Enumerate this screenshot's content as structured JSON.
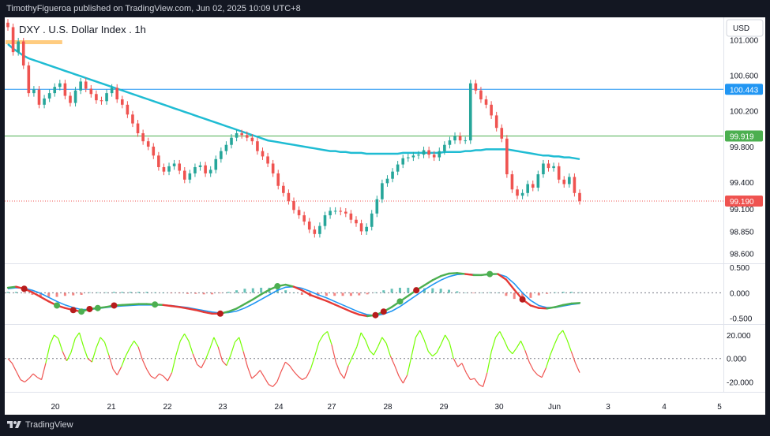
{
  "header": {
    "attribution": "TimothyFigueroa published on TradingView.com, Jun 02, 2025 10:09 UTC+8"
  },
  "footer": {
    "brand": "TradingView"
  },
  "chart_data": {
    "type": "candlestick",
    "title": "DXY . U.S. Dollar Index . 1h",
    "currency": "USD",
    "colors": {
      "up": "#26a69a",
      "down": "#ef5350",
      "ma": "#1fbcd3",
      "line_blue": "#2196f3",
      "line_green": "#4caf50",
      "line_red": "#e53935",
      "highlight": "#ffcc80"
    },
    "x_ticks": [
      "20",
      "21",
      "22",
      "23",
      "24",
      "27",
      "28",
      "29",
      "30",
      "Jun",
      "3",
      "4",
      "5"
    ],
    "y_ticks": [
      "101.000",
      "100.600",
      "100.200",
      "99.800",
      "99.400",
      "99.100",
      "98.850",
      "98.600"
    ],
    "ylim": [
      98.5,
      101.25
    ],
    "price_close": [
      101.14,
      100.86,
      100.98,
      100.71,
      100.4,
      100.44,
      100.27,
      100.34,
      100.4,
      100.47,
      100.51,
      100.37,
      100.29,
      100.43,
      100.53,
      100.45,
      100.39,
      100.32,
      100.31,
      100.4,
      100.46,
      100.33,
      100.27,
      100.16,
      100.06,
      99.95,
      99.86,
      99.8,
      99.7,
      99.57,
      99.52,
      99.58,
      99.61,
      99.53,
      99.43,
      99.5,
      99.57,
      99.59,
      99.5,
      99.54,
      99.66,
      99.75,
      99.82,
      99.9,
      99.95,
      99.93,
      99.9,
      99.86,
      99.75,
      99.69,
      99.61,
      99.5,
      99.36,
      99.28,
      99.19,
      99.09,
      99.03,
      98.96,
      98.87,
      98.82,
      98.91,
      99.03,
      99.08,
      99.08,
      99.07,
      99.05,
      98.98,
      98.94,
      98.85,
      98.9,
      99.05,
      99.21,
      99.39,
      99.44,
      99.52,
      99.6,
      99.67,
      99.68,
      99.7,
      99.71,
      99.76,
      99.71,
      99.68,
      99.75,
      99.82,
      99.87,
      99.92,
      99.87,
      99.87,
      100.51,
      100.43,
      100.33,
      100.27,
      100.15,
      100.01,
      99.89,
      99.49,
      99.32,
      99.25,
      99.28,
      99.38,
      99.34,
      99.49,
      99.61,
      99.56,
      99.58,
      99.43,
      99.38,
      99.46,
      99.28,
      99.19
    ],
    "price_labels": [
      {
        "value": 100.443,
        "label": "100.443",
        "color": "#2196f3"
      },
      {
        "value": 99.919,
        "label": "99.919",
        "color": "#4caf50"
      },
      {
        "value": 99.19,
        "label": "99.190",
        "color": "#ef5350"
      }
    ],
    "ma_line": [
      100.95,
      100.9,
      100.86,
      100.82,
      100.79,
      100.77,
      100.75,
      100.73,
      100.71,
      100.69,
      100.67,
      100.65,
      100.63,
      100.61,
      100.59,
      100.57,
      100.55,
      100.53,
      100.51,
      100.49,
      100.47,
      100.45,
      100.43,
      100.41,
      100.39,
      100.37,
      100.35,
      100.33,
      100.31,
      100.29,
      100.27,
      100.25,
      100.23,
      100.21,
      100.19,
      100.17,
      100.15,
      100.13,
      100.11,
      100.09,
      100.07,
      100.05,
      100.03,
      100.01,
      99.99,
      99.97,
      99.95,
      99.93,
      99.91,
      99.89,
      99.87,
      99.86,
      99.85,
      99.84,
      99.83,
      99.82,
      99.81,
      99.8,
      99.79,
      99.78,
      99.77,
      99.76,
      99.75,
      99.75,
      99.74,
      99.74,
      99.73,
      99.73,
      99.73,
      99.72,
      99.72,
      99.72,
      99.72,
      99.72,
      99.72,
      99.72,
      99.73,
      99.73,
      99.73,
      99.73,
      99.73,
      99.73,
      99.73,
      99.73,
      99.74,
      99.74,
      99.74,
      99.74,
      99.75,
      99.75,
      99.76,
      99.76,
      99.77,
      99.77,
      99.77,
      99.77,
      99.77,
      99.76,
      99.75,
      99.74,
      99.73,
      99.72,
      99.71,
      99.7,
      99.7,
      99.69,
      99.69,
      99.68,
      99.68,
      99.67,
      99.66
    ],
    "oscillator": {
      "y_ticks": [
        "0.500",
        "0.000",
        "-0.500"
      ],
      "ylim": [
        -0.6,
        0.55
      ],
      "line_fast": [
        0.1,
        0.12,
        0.08,
        0.01,
        -0.08,
        -0.17,
        -0.25,
        -0.3,
        -0.34,
        -0.37,
        -0.32,
        -0.3,
        -0.28,
        -0.25,
        -0.24,
        -0.23,
        -0.22,
        -0.22,
        -0.23,
        -0.24,
        -0.26,
        -0.28,
        -0.31,
        -0.34,
        -0.38,
        -0.41,
        -0.41,
        -0.37,
        -0.31,
        -0.22,
        -0.13,
        -0.03,
        0.06,
        0.13,
        0.16,
        0.12,
        0.05,
        -0.04,
        -0.1,
        -0.16,
        -0.23,
        -0.3,
        -0.37,
        -0.43,
        -0.46,
        -0.44,
        -0.37,
        -0.28,
        -0.17,
        -0.06,
        0.05,
        0.15,
        0.25,
        0.33,
        0.38,
        0.39,
        0.37,
        0.35,
        0.35,
        0.37,
        0.37,
        0.26,
        0.06,
        -0.13,
        -0.25,
        -0.3,
        -0.31,
        -0.28,
        -0.24,
        -0.21,
        -0.2
      ],
      "line_signal": [
        0.08,
        0.1,
        0.09,
        0.05,
        -0.01,
        -0.09,
        -0.17,
        -0.24,
        -0.29,
        -0.33,
        -0.33,
        -0.31,
        -0.29,
        -0.27,
        -0.26,
        -0.25,
        -0.24,
        -0.24,
        -0.24,
        -0.24,
        -0.25,
        -0.27,
        -0.29,
        -0.32,
        -0.35,
        -0.38,
        -0.4,
        -0.39,
        -0.36,
        -0.3,
        -0.22,
        -0.13,
        -0.04,
        0.05,
        0.11,
        0.12,
        0.09,
        0.03,
        -0.04,
        -0.1,
        -0.17,
        -0.24,
        -0.31,
        -0.38,
        -0.43,
        -0.45,
        -0.42,
        -0.36,
        -0.27,
        -0.16,
        -0.05,
        0.06,
        0.16,
        0.25,
        0.32,
        0.36,
        0.37,
        0.36,
        0.35,
        0.36,
        0.37,
        0.32,
        0.18,
        0.0,
        -0.15,
        -0.25,
        -0.29,
        -0.29,
        -0.26,
        -0.23,
        -0.21
      ],
      "histogram": [
        0.02,
        0.02,
        -0.01,
        -0.04,
        -0.07,
        -0.08,
        -0.08,
        -0.06,
        -0.05,
        -0.04,
        0.01,
        0.01,
        0.01,
        0.02,
        0.02,
        0.02,
        0.02,
        0.02,
        0.01,
        0.0,
        -0.01,
        -0.01,
        -0.02,
        -0.02,
        -0.03,
        -0.03,
        -0.01,
        0.02,
        0.05,
        0.08,
        0.09,
        0.1,
        0.1,
        0.08,
        0.05,
        0.0,
        -0.04,
        -0.07,
        -0.06,
        -0.06,
        -0.06,
        -0.06,
        -0.06,
        -0.05,
        -0.03,
        0.01,
        0.05,
        0.08,
        0.1,
        0.1,
        0.1,
        0.09,
        0.09,
        0.08,
        0.06,
        0.03,
        0.0,
        -0.01,
        0.0,
        0.01,
        0.0,
        -0.06,
        -0.12,
        -0.13,
        -0.1,
        -0.05,
        -0.02,
        0.01,
        0.02,
        0.02,
        0.01
      ],
      "markers": [
        {
          "i": 3,
          "color": "#b71c1c"
        },
        {
          "i": 9,
          "color": "#4caf50"
        },
        {
          "i": 12,
          "color": "#b71c1c"
        },
        {
          "i": 14,
          "color": "#4caf50"
        },
        {
          "i": 15,
          "color": "#b71c1c"
        },
        {
          "i": 17,
          "color": "#4caf50"
        },
        {
          "i": 20,
          "color": "#b71c1c"
        },
        {
          "i": 28,
          "color": "#4caf50"
        },
        {
          "i": 41,
          "color": "#b71c1c"
        },
        {
          "i": 52,
          "color": "#4caf50"
        },
        {
          "i": 70,
          "color": "#b71c1c"
        },
        {
          "i": 72,
          "color": "#b71c1c"
        },
        {
          "i": 75,
          "color": "#4caf50"
        },
        {
          "i": 78,
          "color": "#b71c1c"
        },
        {
          "i": 92,
          "color": "#4caf50"
        },
        {
          "i": 99,
          "color": "#b71c1c"
        }
      ]
    },
    "momentum": {
      "y_ticks": [
        "20.000",
        "0.000",
        "-20.000"
      ],
      "ylim": [
        -27,
        28
      ],
      "values": [
        0,
        -4,
        -11,
        -18,
        -20,
        -17,
        -13,
        -16,
        -18,
        -4,
        12,
        20,
        17,
        6,
        -2,
        5,
        17,
        22,
        10,
        0,
        -3,
        9,
        18,
        14,
        3,
        -9,
        -14,
        -7,
        2,
        9,
        15,
        10,
        -1,
        -9,
        -15,
        -17,
        -13,
        -15,
        -19,
        -12,
        3,
        15,
        21,
        15,
        4,
        -5,
        -8,
        -1,
        8,
        18,
        10,
        -2,
        -6,
        3,
        14,
        18,
        6,
        -7,
        -17,
        -14,
        -10,
        -16,
        -22,
        -24,
        -20,
        -11,
        -3,
        -6,
        -11,
        -15,
        -18,
        -16,
        -9,
        2,
        14,
        20,
        23,
        12,
        -3,
        -12,
        -17,
        -6,
        2,
        10,
        22,
        16,
        7,
        3,
        10,
        18,
        13,
        2,
        -6,
        -15,
        -21,
        -14,
        2,
        18,
        24,
        16,
        6,
        2,
        5,
        12,
        20,
        14,
        0,
        -7,
        -4,
        -12,
        -18,
        -17,
        -22,
        -24,
        -12,
        6,
        18,
        23,
        16,
        8,
        4,
        9,
        15,
        7,
        -3,
        -10,
        -14,
        -16,
        -8,
        3,
        12,
        20,
        24,
        16,
        6,
        -4,
        -12
      ]
    },
    "highlight": {
      "from_index": 0,
      "to_index": 10
    }
  }
}
